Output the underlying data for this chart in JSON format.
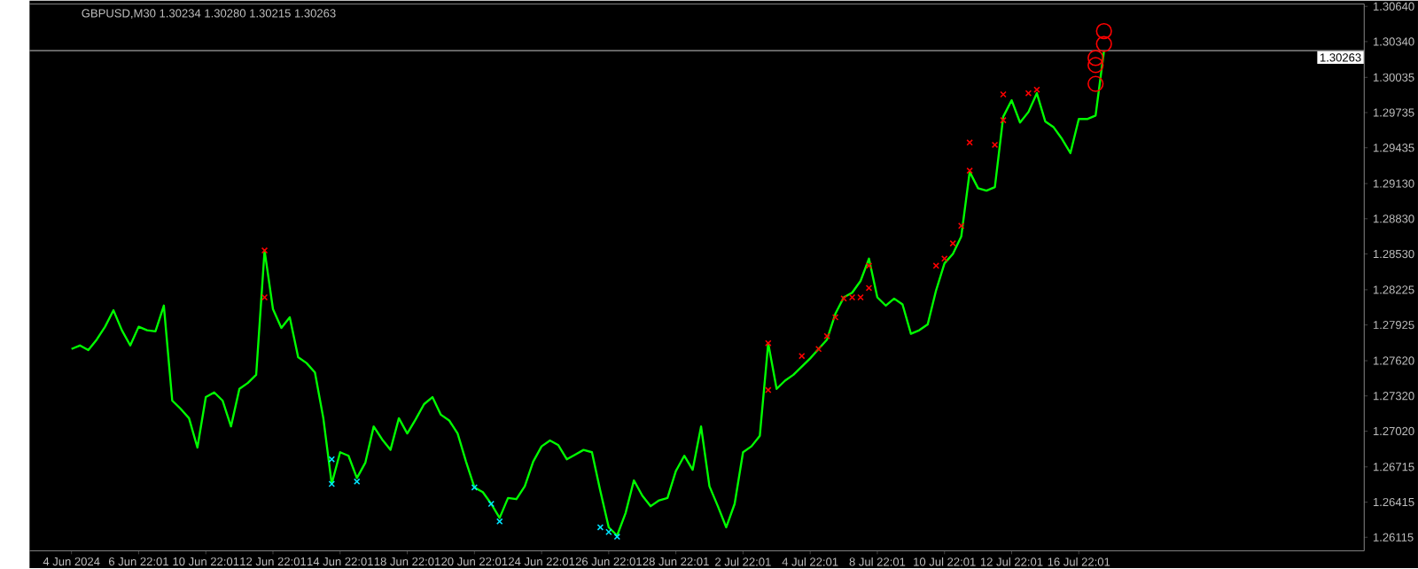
{
  "chart_data": {
    "type": "line",
    "title": "GBPUSD,M30  1.30234 1.30280 1.30215 1.30263",
    "categories": [
      "4 Jun 2024",
      null,
      null,
      null,
      null,
      null,
      null,
      null,
      "6 Jun 22:01",
      null,
      null,
      null,
      null,
      null,
      null,
      null,
      "10 Jun 22:01",
      null,
      null,
      null,
      null,
      null,
      null,
      null,
      "12 Jun 22:01",
      null,
      null,
      null,
      null,
      null,
      null,
      null,
      "14 Jun 22:01",
      null,
      null,
      null,
      null,
      null,
      null,
      null,
      "18 Jun 22:01",
      null,
      null,
      null,
      null,
      null,
      null,
      null,
      "20 Jun 22:01",
      null,
      null,
      null,
      null,
      null,
      null,
      null,
      "24 Jun 22:01",
      null,
      null,
      null,
      null,
      null,
      null,
      null,
      "26 Jun 22:01",
      null,
      null,
      null,
      null,
      null,
      null,
      null,
      "28 Jun 22:01",
      null,
      null,
      null,
      null,
      null,
      null,
      null,
      "2 Jul 22:01",
      null,
      null,
      null,
      null,
      null,
      null,
      null,
      "4 Jul 22:01",
      null,
      null,
      null,
      null,
      null,
      null,
      null,
      "8 Jul 22:01",
      null,
      null,
      null,
      null,
      null,
      null,
      null,
      "10 Jul 22:01",
      null,
      null,
      null,
      null,
      null,
      null,
      null,
      "12 Jul 22:01",
      null,
      null,
      null,
      null,
      null,
      null,
      null,
      "16 Jul 22:01",
      null,
      null,
      null
    ],
    "ylim": [
      1.26,
      1.3066
    ],
    "yticks": [
      1.26115,
      {
        "value": 1.26415,
        "label": "1.26415"
      },
      {
        "value": 1.26715,
        "label": "1.26715"
      },
      {
        "value": 1.2702,
        "label": "1.27020"
      },
      {
        "value": 1.2732,
        "label": "1.27320"
      },
      {
        "value": 1.2762,
        "label": "1.27620"
      },
      1.27925,
      1.28225,
      {
        "value": 1.2853,
        "label": "1.28530"
      },
      {
        "value": 1.2883,
        "label": "1.28830"
      },
      {
        "value": 1.2913,
        "label": "1.29130"
      },
      1.29435,
      1.29735,
      1.30035,
      {
        "value": 1.3034,
        "label": "1.30340"
      },
      {
        "value": 1.3064,
        "label": "1.30640"
      }
    ],
    "ref_lines": [
      {
        "axis": "y",
        "value": 1.30263,
        "label": "1.30263",
        "color": "#a0a0a0"
      }
    ],
    "series": [
      {
        "color": "#00ff00",
        "marker": "none",
        "values": [
          1.2772,
          1.2775,
          1.2771,
          1.278,
          1.2791,
          1.2805,
          1.2788,
          1.2775,
          1.2791,
          1.2788,
          1.2787,
          1.2809,
          1.2728,
          1.2721,
          1.2713,
          1.2688,
          1.2731,
          1.2735,
          1.2728,
          1.2706,
          1.2738,
          1.2743,
          1.275,
          1.2856,
          1.2806,
          1.279,
          1.2799,
          1.2765,
          1.276,
          1.2752,
          1.2713,
          1.2657,
          1.2684,
          1.2681,
          1.2662,
          1.2675,
          1.2706,
          1.2695,
          1.2686,
          1.2713,
          1.27,
          1.2712,
          1.2725,
          1.2731,
          1.2716,
          1.2711,
          1.27,
          1.2676,
          1.2654,
          1.265,
          1.264,
          1.2628,
          1.2645,
          1.2644,
          1.2655,
          1.2676,
          1.2689,
          1.2694,
          1.269,
          1.2678,
          1.2682,
          1.2686,
          1.2684,
          1.2651,
          1.262,
          1.2613,
          1.2632,
          1.266,
          1.2647,
          1.2638,
          1.2643,
          1.2645,
          1.2668,
          1.2681,
          1.2669,
          1.2706,
          1.2655,
          1.2638,
          1.262,
          1.264,
          1.2684,
          1.2689,
          1.2698,
          1.2777,
          1.2738,
          1.2745,
          1.275,
          1.2757,
          1.2764,
          1.2772,
          1.278,
          1.2802,
          1.2816,
          1.282,
          1.283,
          1.2849,
          1.2816,
          1.2809,
          1.2815,
          1.281,
          1.2785,
          1.2788,
          1.2793,
          1.2822,
          1.2845,
          1.2853,
          1.2868,
          1.2923,
          1.2909,
          1.2907,
          1.291,
          1.297,
          1.2984,
          1.2965,
          1.2974,
          1.299,
          1.2966,
          1.2961,
          1.2951,
          1.2939,
          1.2968,
          1.2968,
          1.2971,
          1.3026
        ]
      },
      {
        "type": "scatter",
        "color": "#ff0000",
        "marker": "cross",
        "values": [
          null,
          null,
          null,
          null,
          null,
          null,
          null,
          null,
          null,
          null,
          null,
          null,
          null,
          null,
          null,
          null,
          null,
          null,
          null,
          null,
          null,
          null,
          null,
          1.2856,
          null,
          null,
          null,
          null,
          null,
          null,
          null,
          null,
          null,
          null,
          null,
          null,
          null,
          null,
          null,
          null,
          null,
          null,
          null,
          null,
          null,
          null,
          null,
          null,
          null,
          null,
          null,
          null,
          null,
          null,
          null,
          null,
          null,
          null,
          null,
          null,
          null,
          null,
          null,
          null,
          null,
          null,
          null,
          null,
          null,
          null,
          null,
          null,
          null,
          null,
          null,
          null,
          null,
          null,
          null,
          null,
          null,
          null,
          null,
          1.2777,
          null,
          null,
          null,
          1.2766,
          null,
          1.2772,
          1.2783,
          1.2799,
          1.2815,
          1.2816,
          1.2816,
          1.2824,
          null,
          null,
          null,
          null,
          null,
          null,
          null,
          1.2843,
          1.2849,
          1.2862,
          1.2877,
          1.2924,
          null,
          null,
          1.2946,
          1.2967,
          null,
          null,
          1.299,
          1.2993,
          null,
          null,
          null,
          null,
          null,
          null,
          null,
          null
        ]
      },
      {
        "type": "scatter",
        "color": "#ff0000",
        "marker": "cross",
        "values": [
          null,
          null,
          null,
          null,
          null,
          null,
          null,
          null,
          null,
          null,
          null,
          null,
          null,
          null,
          null,
          null,
          null,
          null,
          null,
          null,
          null,
          null,
          null,
          1.2816,
          null,
          null,
          null,
          null,
          null,
          null,
          null,
          null,
          null,
          null,
          null,
          null,
          null,
          null,
          null,
          null,
          null,
          null,
          null,
          null,
          null,
          null,
          null,
          null,
          null,
          null,
          null,
          null,
          null,
          null,
          null,
          null,
          null,
          null,
          null,
          null,
          null,
          null,
          null,
          null,
          null,
          null,
          null,
          null,
          null,
          null,
          null,
          null,
          null,
          null,
          null,
          null,
          null,
          null,
          null,
          null,
          null,
          null,
          null,
          1.2737,
          null,
          null,
          null,
          null,
          null,
          null,
          null,
          null,
          null,
          null,
          null,
          1.2843,
          null,
          null,
          null,
          null,
          null,
          null,
          null,
          null,
          null,
          null,
          null,
          1.2948,
          null,
          null,
          null,
          1.2989,
          null,
          null,
          null,
          null,
          null,
          null,
          null,
          null,
          null,
          null,
          null,
          null
        ]
      },
      {
        "type": "scatter",
        "color": "#00e5ff",
        "marker": "cross",
        "values": [
          null,
          null,
          null,
          null,
          null,
          null,
          null,
          null,
          null,
          null,
          null,
          null,
          null,
          null,
          null,
          null,
          null,
          null,
          null,
          null,
          null,
          null,
          null,
          null,
          null,
          null,
          null,
          null,
          null,
          null,
          null,
          1.2678,
          null,
          null,
          1.2659,
          null,
          null,
          null,
          null,
          null,
          null,
          null,
          null,
          null,
          null,
          null,
          null,
          null,
          1.2654,
          null,
          1.264,
          1.2625,
          null,
          null,
          null,
          null,
          null,
          null,
          null,
          null,
          null,
          null,
          null,
          1.262,
          1.2616,
          1.2612,
          null,
          null,
          null,
          null,
          null,
          null,
          null,
          null,
          null,
          null,
          null,
          null,
          null,
          null,
          null,
          null,
          null,
          null,
          null,
          null,
          null,
          null,
          null,
          null,
          null,
          null,
          null,
          null,
          null,
          null,
          null,
          null,
          null,
          null,
          null,
          null,
          null,
          null,
          null,
          null,
          null,
          null,
          null,
          null,
          null,
          null,
          null,
          null,
          null,
          null,
          null,
          null,
          null,
          null,
          null,
          null,
          null,
          null
        ]
      },
      {
        "type": "scatter",
        "color": "#00e5ff",
        "marker": "cross",
        "values": [
          null,
          null,
          null,
          null,
          null,
          null,
          null,
          null,
          null,
          null,
          null,
          null,
          null,
          null,
          null,
          null,
          null,
          null,
          null,
          null,
          null,
          null,
          null,
          null,
          null,
          null,
          null,
          null,
          null,
          null,
          null,
          1.2657,
          null,
          null,
          null,
          null,
          null,
          null,
          null,
          null,
          null,
          null,
          null,
          null,
          null,
          null,
          null,
          null,
          null,
          null,
          null,
          null,
          null,
          null,
          null,
          null,
          null,
          null,
          null,
          null,
          null,
          null,
          null,
          null,
          null,
          null,
          null,
          null,
          null,
          null,
          null,
          null,
          null,
          null,
          null,
          null,
          null,
          null,
          null,
          null,
          null,
          null,
          null,
          null,
          null,
          null,
          null,
          null,
          null,
          null,
          null,
          null,
          null,
          null,
          null,
          null,
          null,
          null,
          null,
          null,
          null,
          null,
          null,
          null,
          null,
          null,
          null,
          null,
          null,
          null,
          null,
          null,
          null,
          null,
          null,
          null,
          null,
          null,
          null,
          null,
          null,
          null,
          null,
          null
        ]
      },
      {
        "type": "scatter",
        "color": "#ff0000",
        "marker": "circle",
        "values": [
          null,
          null,
          null,
          null,
          null,
          null,
          null,
          null,
          null,
          null,
          null,
          null,
          null,
          null,
          null,
          null,
          null,
          null,
          null,
          null,
          null,
          null,
          null,
          null,
          null,
          null,
          null,
          null,
          null,
          null,
          null,
          null,
          null,
          null,
          null,
          null,
          null,
          null,
          null,
          null,
          null,
          null,
          null,
          null,
          null,
          null,
          null,
          null,
          null,
          null,
          null,
          null,
          null,
          null,
          null,
          null,
          null,
          null,
          null,
          null,
          null,
          null,
          null,
          null,
          null,
          null,
          null,
          null,
          null,
          null,
          null,
          null,
          null,
          null,
          null,
          null,
          null,
          null,
          null,
          null,
          null,
          null,
          null,
          null,
          null,
          null,
          null,
          null,
          null,
          null,
          null,
          null,
          null,
          null,
          null,
          null,
          null,
          null,
          null,
          null,
          null,
          null,
          null,
          null,
          null,
          null,
          null,
          null,
          null,
          null,
          null,
          null,
          null,
          null,
          null,
          null,
          null,
          null,
          null,
          null,
          null,
          null,
          1.2998,
          1.3032
        ]
      },
      {
        "type": "scatter",
        "color": "#ff0000",
        "marker": "circle",
        "values": [
          null,
          null,
          null,
          null,
          null,
          null,
          null,
          null,
          null,
          null,
          null,
          null,
          null,
          null,
          null,
          null,
          null,
          null,
          null,
          null,
          null,
          null,
          null,
          null,
          null,
          null,
          null,
          null,
          null,
          null,
          null,
          null,
          null,
          null,
          null,
          null,
          null,
          null,
          null,
          null,
          null,
          null,
          null,
          null,
          null,
          null,
          null,
          null,
          null,
          null,
          null,
          null,
          null,
          null,
          null,
          null,
          null,
          null,
          null,
          null,
          null,
          null,
          null,
          null,
          null,
          null,
          null,
          null,
          null,
          null,
          null,
          null,
          null,
          null,
          null,
          null,
          null,
          null,
          null,
          null,
          null,
          null,
          null,
          null,
          null,
          null,
          null,
          null,
          null,
          null,
          null,
          null,
          null,
          null,
          null,
          null,
          null,
          null,
          null,
          null,
          null,
          null,
          null,
          null,
          null,
          null,
          null,
          null,
          null,
          null,
          null,
          null,
          null,
          null,
          null,
          null,
          null,
          null,
          null,
          null,
          null,
          null,
          1.3014,
          1.3043
        ]
      },
      {
        "type": "scatter",
        "color": "#ff0000",
        "marker": "circle",
        "values": [
          null,
          null,
          null,
          null,
          null,
          null,
          null,
          null,
          null,
          null,
          null,
          null,
          null,
          null,
          null,
          null,
          null,
          null,
          null,
          null,
          null,
          null,
          null,
          null,
          null,
          null,
          null,
          null,
          null,
          null,
          null,
          null,
          null,
          null,
          null,
          null,
          null,
          null,
          null,
          null,
          null,
          null,
          null,
          null,
          null,
          null,
          null,
          null,
          null,
          null,
          null,
          null,
          null,
          null,
          null,
          null,
          null,
          null,
          null,
          null,
          null,
          null,
          null,
          null,
          null,
          null,
          null,
          null,
          null,
          null,
          null,
          null,
          null,
          null,
          null,
          null,
          null,
          null,
          null,
          null,
          null,
          null,
          null,
          null,
          null,
          null,
          null,
          null,
          null,
          null,
          null,
          null,
          null,
          null,
          null,
          null,
          null,
          null,
          null,
          null,
          null,
          null,
          null,
          null,
          null,
          null,
          null,
          null,
          null,
          null,
          null,
          null,
          null,
          null,
          null,
          null,
          null,
          null,
          null,
          null,
          null,
          null,
          1.302,
          null
        ]
      }
    ]
  }
}
